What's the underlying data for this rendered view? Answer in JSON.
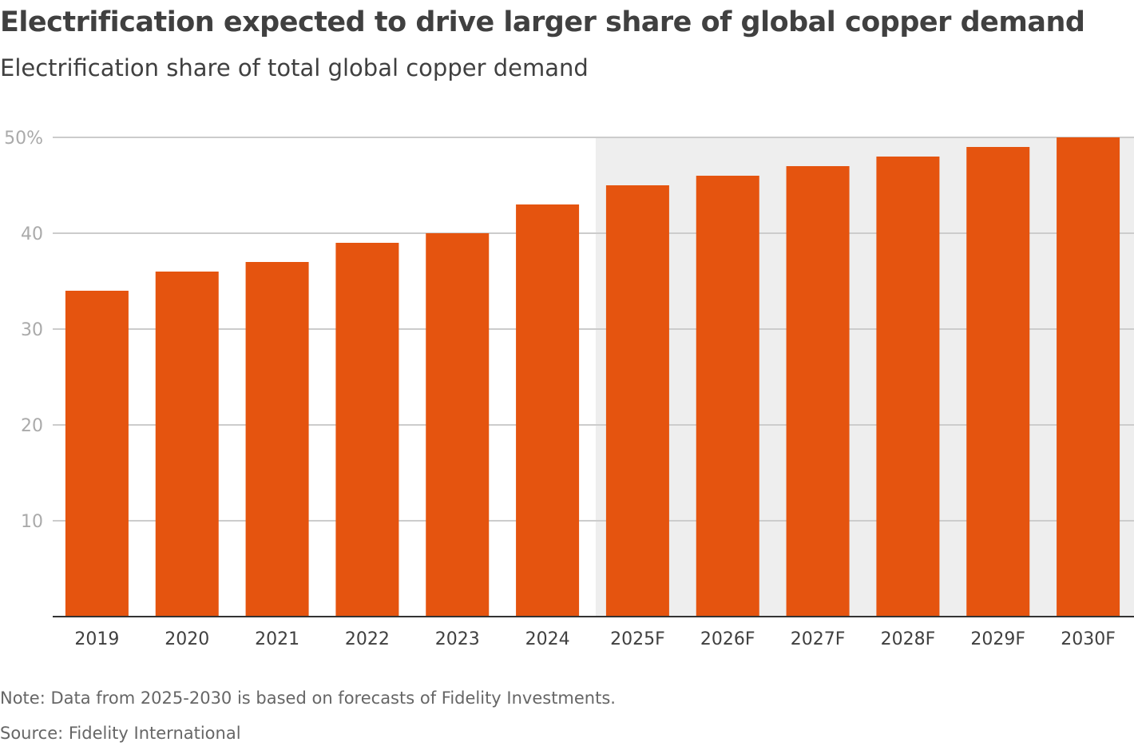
{
  "chart_data": {
    "type": "bar",
    "title": "Electrification expected to drive larger share of global copper demand",
    "subtitle": "Electrification share of total global copper demand",
    "categories": [
      "2019",
      "2020",
      "2021",
      "2022",
      "2023",
      "2024",
      "2025F",
      "2026F",
      "2027F",
      "2028F",
      "2029F",
      "2030F"
    ],
    "values": [
      34,
      36,
      37,
      39,
      40,
      43,
      45,
      46,
      47,
      48,
      49,
      50
    ],
    "ylim": [
      0,
      50
    ],
    "yticks": [
      10,
      20,
      30,
      40,
      50
    ],
    "ytick_labels": [
      "10",
      "20",
      "30",
      "40",
      "50%"
    ],
    "grid": true,
    "forecast_shading_from": "2025F",
    "colors": {
      "bar": "#e5540f",
      "forecast_bg": "#eeeeee",
      "grid": "#cccccc",
      "axis": "#333333"
    },
    "note": "Note: Data from 2025-2030 is based on forecasts of Fidelity Investments.",
    "source": "Source: Fidelity International"
  }
}
